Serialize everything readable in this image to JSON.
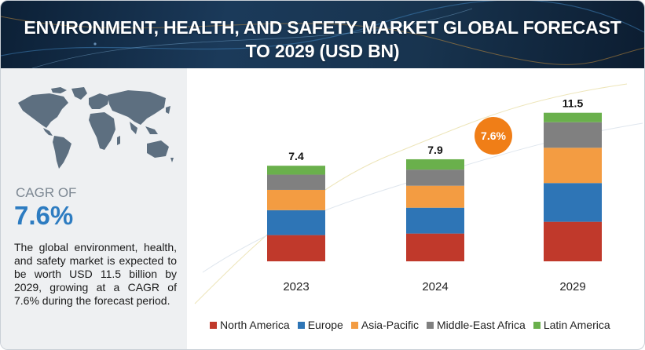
{
  "banner": {
    "title_line1": "ENVIRONMENT, HEALTH, AND SAFETY MARKET GLOBAL FORECAST",
    "title_line2": "TO 2029 (USD BN)"
  },
  "summary": {
    "cagr_label": "CAGR OF",
    "cagr_value": "7.6%",
    "description": "The global environment, health, and safety market is expected to be worth USD 11.5 billion by 2029, growing at a CAGR of 7.6% during the forecast period."
  },
  "badge": {
    "text": "7.6%",
    "color": "#f07e17"
  },
  "colors": {
    "accent_blue": "#2d7cc1",
    "banner_dark": "#0c2036"
  },
  "chart_data": {
    "type": "bar",
    "stacked": true,
    "title": "ENVIRONMENT, HEALTH, AND SAFETY MARKET GLOBAL FORECAST TO 2029 (USD BN)",
    "categories": [
      "2023",
      "2024",
      "2029"
    ],
    "totals": [
      7.4,
      7.9,
      11.5
    ],
    "total_labels": [
      "7.4",
      "7.9",
      "11.5"
    ],
    "series": [
      {
        "name": "North America",
        "color": "#c0392b",
        "values": [
          2.03,
          2.15,
          3.06
        ]
      },
      {
        "name": "Europe",
        "color": "#2e75b6",
        "values": [
          1.93,
          2.0,
          3.0
        ]
      },
      {
        "name": "Asia-Pacific",
        "color": "#f39c42",
        "values": [
          1.57,
          1.7,
          2.73
        ]
      },
      {
        "name": "Middle-East Africa",
        "color": "#808080",
        "values": [
          1.18,
          1.25,
          1.98
        ]
      },
      {
        "name": "Latin America",
        "color": "#6ab04c",
        "values": [
          0.69,
          0.8,
          0.73
        ]
      }
    ],
    "legend_position": "bottom",
    "grid": false,
    "ylim": [
      0,
      13
    ]
  }
}
